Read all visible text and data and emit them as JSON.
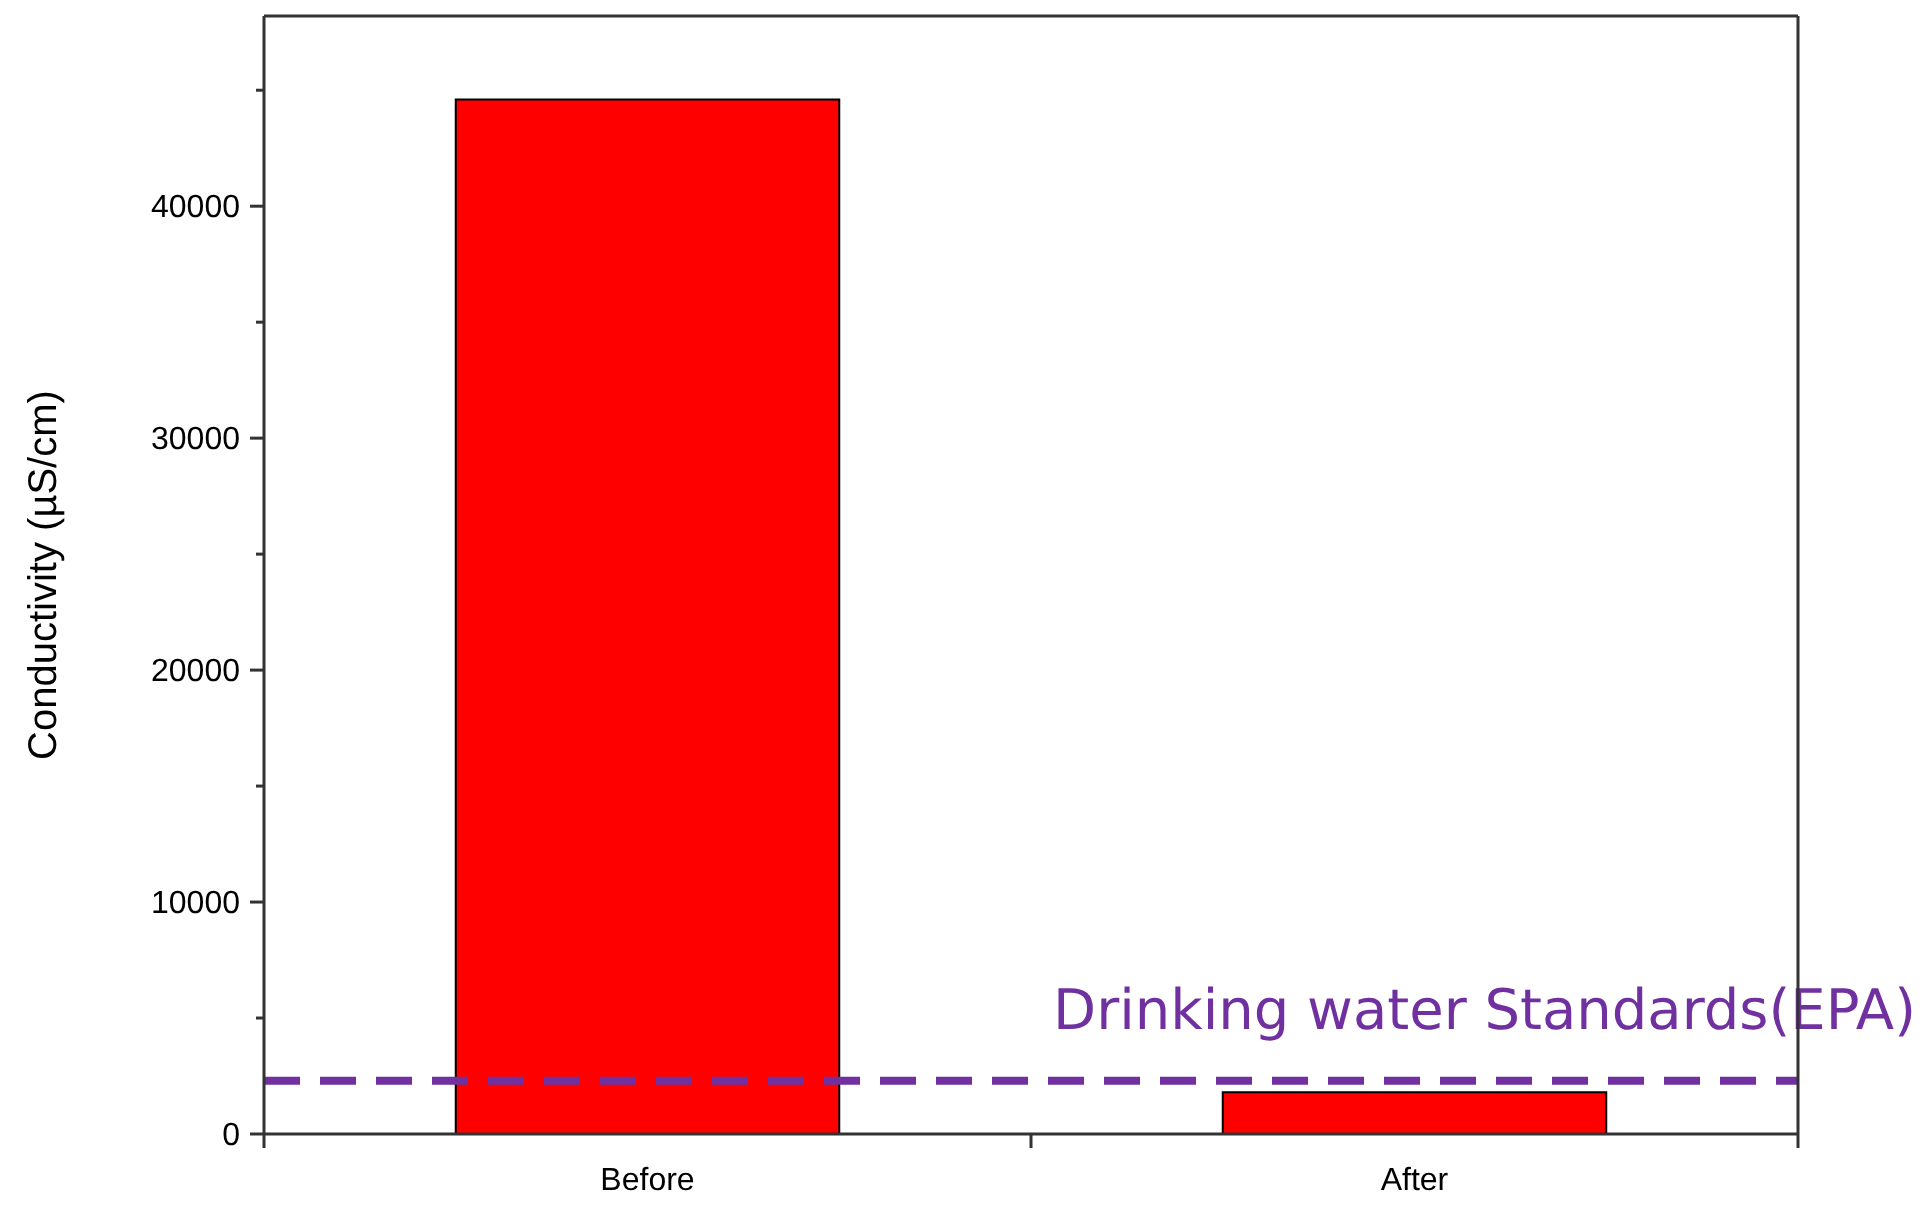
{
  "chart_data": {
    "type": "bar",
    "ylabel": "Conductivity (µS/cm)",
    "categories": [
      "Before",
      "After"
    ],
    "values": [
      44600,
      1800
    ],
    "color": "#ff0000",
    "ylim": [
      0,
      48200
    ],
    "yticks": [
      0,
      10000,
      20000,
      30000,
      40000
    ],
    "ref_lines": [
      {
        "axis": "y",
        "value": 2300,
        "label": "Drinking water Standards(EPA)",
        "color": "#7030a0",
        "line_style": "dashed"
      }
    ],
    "grid": false
  }
}
